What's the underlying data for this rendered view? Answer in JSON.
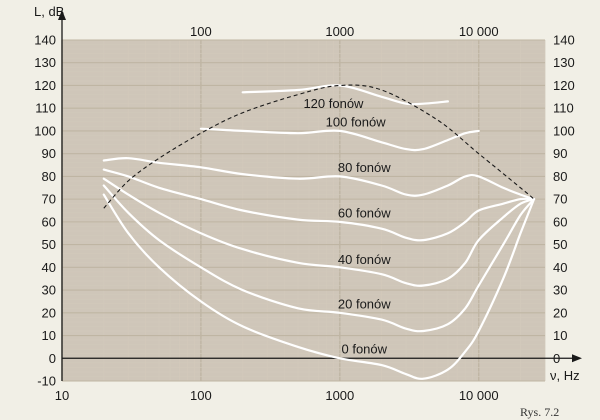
{
  "chart_data": {
    "type": "line",
    "xlabel": "ν, Hz",
    "ylabel": "L, dB",
    "xscale": "log",
    "xlim": [
      10,
      30000
    ],
    "ylim": [
      -10,
      140
    ],
    "x_ticks_bottom": [
      "10",
      "100",
      "1000",
      "10 000"
    ],
    "x_ticks_top": [
      "100",
      "1000",
      "10 000"
    ],
    "y_ticks": [
      "-10",
      "0",
      "10",
      "20",
      "30",
      "40",
      "50",
      "60",
      "70",
      "80",
      "90",
      "100",
      "110",
      "120",
      "130",
      "140"
    ],
    "grid": true,
    "curve_color": "#ffffff",
    "grid_major_color": "#bfb5a3",
    "grid_minor_color": "#d2c9bb",
    "background_color": "#cfc6b9",
    "series": [
      {
        "name": "0 fonów",
        "label_at": [
          1500,
          2
        ],
        "x": [
          20,
          30,
          50,
          100,
          200,
          500,
          1000,
          2000,
          3000,
          4000,
          6000,
          8000,
          10000,
          15000,
          20000,
          25000
        ],
        "y": [
          72,
          55,
          40,
          25,
          14,
          5,
          0,
          -3,
          -7,
          -9,
          -5,
          3,
          12,
          35,
          55,
          70
        ]
      },
      {
        "name": "20 fonów",
        "label_at": [
          1500,
          22
        ],
        "x": [
          20,
          30,
          50,
          100,
          200,
          500,
          1000,
          2000,
          3000,
          4000,
          6000,
          8000,
          10000,
          15000,
          20000,
          25000
        ],
        "y": [
          76,
          64,
          52,
          40,
          30,
          22,
          20,
          17,
          13,
          12,
          15,
          22,
          32,
          50,
          63,
          70
        ]
      },
      {
        "name": "40 fonów",
        "label_at": [
          1500,
          41.5
        ],
        "x": [
          20,
          30,
          50,
          100,
          200,
          500,
          1000,
          2000,
          3000,
          4000,
          6000,
          8000,
          10000,
          15000,
          20000,
          25000
        ],
        "y": [
          79,
          72,
          64,
          55,
          48,
          42,
          40,
          37,
          33,
          32,
          35,
          42,
          52,
          62,
          68,
          70
        ]
      },
      {
        "name": "60 fonów",
        "label_at": [
          1500,
          62
        ],
        "x": [
          20,
          30,
          50,
          100,
          200,
          500,
          1000,
          2000,
          3000,
          4000,
          6000,
          8000,
          10000,
          15000,
          20000,
          25000
        ],
        "y": [
          83,
          80,
          75,
          70,
          65,
          61,
          60,
          57,
          53,
          52,
          55,
          60,
          65,
          68,
          70,
          70
        ]
      },
      {
        "name": "80 fonów",
        "label_at": [
          1500,
          82
        ],
        "x": [
          20,
          30,
          50,
          100,
          200,
          500,
          1000,
          2000,
          3000,
          4000,
          6000,
          8000,
          10000,
          15000,
          20000,
          25000
        ],
        "y": [
          87,
          88,
          86,
          84,
          81,
          79,
          80,
          76,
          72,
          72,
          76,
          80,
          80,
          75,
          72,
          70
        ]
      },
      {
        "name": "100 fonów",
        "label_at": [
          1300,
          102
        ],
        "x": [
          100,
          200,
          500,
          1000,
          2000,
          3000,
          4000,
          6000,
          8000,
          10000
        ],
        "y": [
          101,
          100,
          99,
          100,
          95,
          92,
          92,
          96,
          99,
          100
        ]
      },
      {
        "name": "120 fonów",
        "label_at": [
          900,
          110
        ],
        "x": [
          200,
          500,
          1000,
          2000,
          3000,
          4000,
          6000
        ],
        "y": [
          117,
          118,
          120,
          115,
          112,
          112,
          113
        ]
      }
    ],
    "threshold_of_pain": {
      "style": "dashed",
      "x": [
        20,
        30,
        50,
        100,
        200,
        500,
        1000,
        2000,
        5000,
        10000,
        20000,
        25000
      ],
      "y": [
        66,
        78,
        88,
        99,
        108,
        116,
        120,
        118,
        105,
        90,
        75,
        70
      ]
    }
  },
  "caption": "Rys. 7.2"
}
